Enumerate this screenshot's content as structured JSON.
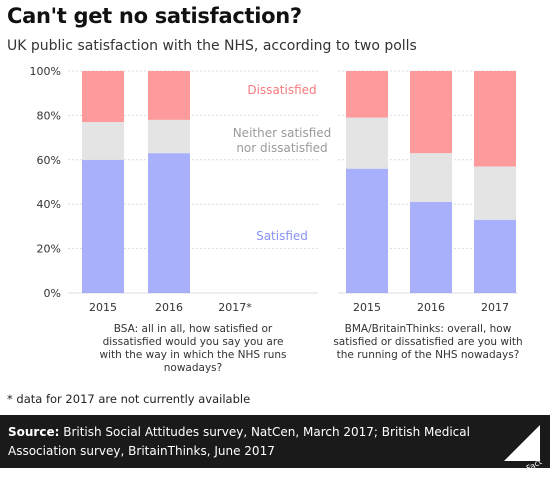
{
  "title": "Can't get no satisfaction?",
  "subtitle": "UK public satisfaction with the NHS, according to two polls",
  "footnote": "* data for 2017 are not currently available",
  "footer": {
    "source_label": "Source:",
    "source_text": " British Social Attitudes survey, NatCen, March 2017; British Medical Association survey, BritainThinks, June 2017",
    "logo_text": "Full Fact"
  },
  "colors": {
    "satisfied": "#a9b0fb",
    "neither": "#e4e4e4",
    "dissatisfied": "#fd9a9c",
    "satisfied_label": "#8a93f5",
    "neither_label": "#9a9a9a",
    "dissatisfied_label": "#f57a7c"
  },
  "chart_data": {
    "type": "bar",
    "stacked": true,
    "ylim": [
      0,
      100
    ],
    "yticks": [
      "0%",
      "20%",
      "40%",
      "60%",
      "80%",
      "100%"
    ],
    "segment_labels": {
      "dissatisfied": "Dissatisfied",
      "neither_line1": "Neither satisfied",
      "neither_line2": "nor dissatisfied",
      "satisfied": "Satisfied"
    },
    "panels": [
      {
        "categories": [
          "2015",
          "2016",
          "2017*"
        ],
        "series": [
          {
            "name": "Satisfied",
            "values": [
              60,
              63,
              null
            ]
          },
          {
            "name": "Neither satisfied nor dissatisfied",
            "values": [
              17,
              15,
              null
            ]
          },
          {
            "name": "Dissatisfied",
            "values": [
              23,
              22,
              null
            ]
          }
        ],
        "caption": [
          "BSA: all in all, how satisfied or",
          "dissatisfied would you say you are",
          "with the way in which the NHS runs",
          "nowadays?"
        ]
      },
      {
        "categories": [
          "2015",
          "2016",
          "2017"
        ],
        "series": [
          {
            "name": "Satisfied",
            "values": [
              56,
              41,
              33
            ]
          },
          {
            "name": "Neither satisfied nor dissatisfied",
            "values": [
              23,
              22,
              24
            ]
          },
          {
            "name": "Dissatisfied",
            "values": [
              21,
              37,
              43
            ]
          }
        ],
        "caption": [
          "BMA/BritainThinks: overall, how",
          "satisfied or dissatisfied are you with",
          "the running of the NHS nowadays?"
        ]
      }
    ]
  }
}
